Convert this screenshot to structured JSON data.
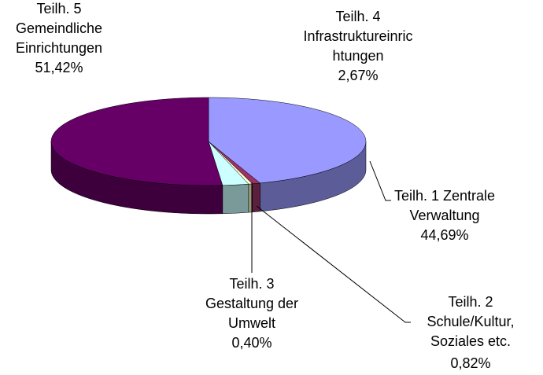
{
  "chart_data": {
    "type": "pie3d",
    "categories": [
      [
        "Teilh. 1 Zentrale",
        "Verwaltung"
      ],
      [
        "Teilh. 2",
        "Schule/Kultur,",
        "Soziales etc."
      ],
      [
        "Teilh. 3",
        "Gestaltung der",
        "Umwelt"
      ],
      [
        "Teilh. 4",
        "Infrastruktureinric",
        "htungen"
      ],
      [
        "Teilh. 5",
        "Gemeindliche",
        "Einrichtungen"
      ]
    ],
    "values": [
      44.69,
      0.82,
      0.4,
      2.67,
      51.42
    ],
    "value_labels": [
      "44,69%",
      "0,82%",
      "0,40%",
      "2,67%",
      "51,42%"
    ],
    "colors": [
      "#9999ff",
      "#993366",
      "#ffffcc",
      "#ccffff",
      "#660066"
    ]
  }
}
